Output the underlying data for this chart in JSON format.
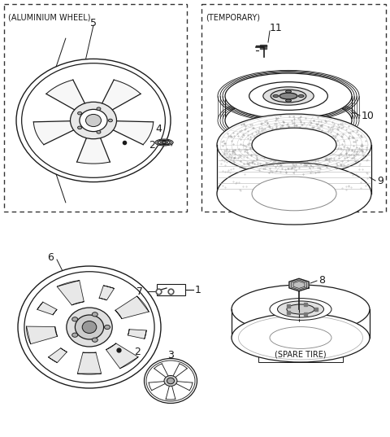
{
  "background_color": "#ffffff",
  "line_color": "#1a1a1a",
  "box1_label": "(ALUMINIUM WHEEL)",
  "box2_label": "(TEMPORARY)",
  "spare_tire_label": "(SPARE TIRE)",
  "fig_width": 4.8,
  "fig_height": 5.37,
  "dpi": 100
}
